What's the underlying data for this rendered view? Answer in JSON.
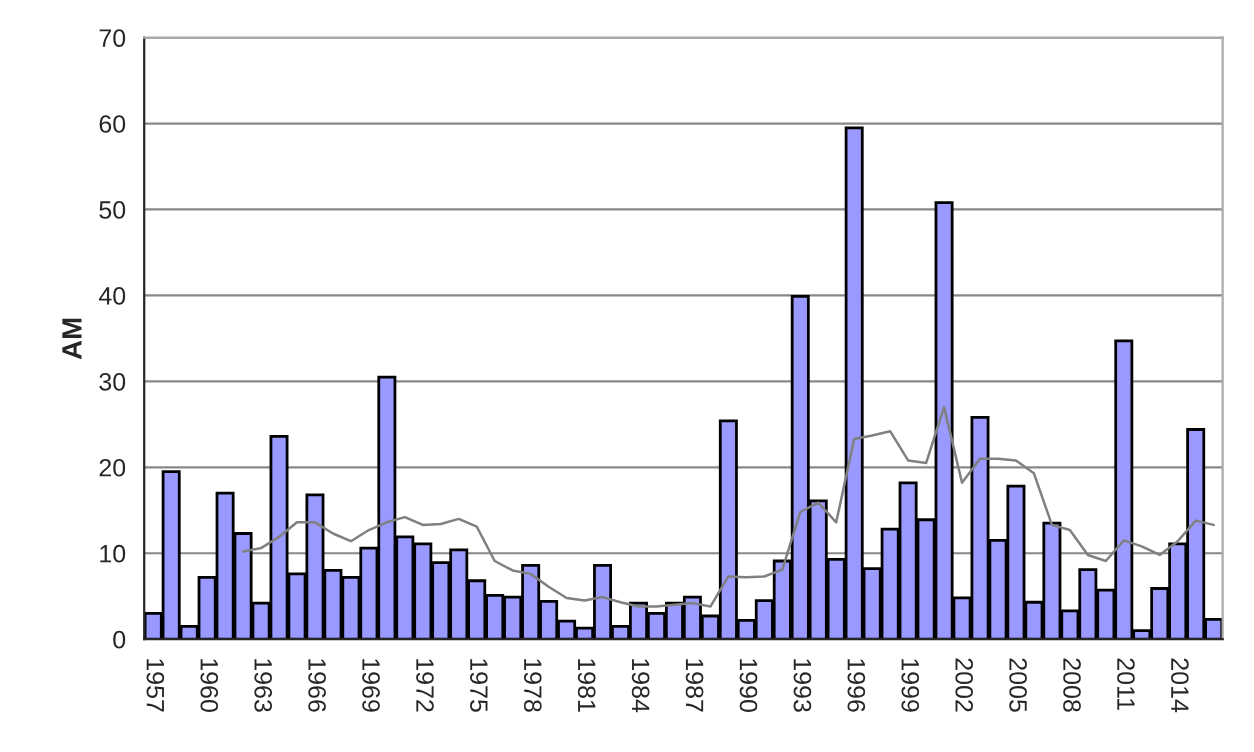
{
  "chart_data": {
    "type": "bar",
    "ylabel": "AM",
    "categories": [
      "1957",
      null,
      null,
      "1960",
      null,
      null,
      "1963",
      null,
      null,
      "1966",
      null,
      null,
      "1969",
      null,
      null,
      "1972",
      null,
      null,
      "1975",
      null,
      null,
      "1978",
      null,
      null,
      "1981",
      null,
      null,
      "1984",
      null,
      null,
      "1987",
      null,
      null,
      "1990",
      null,
      null,
      "1993",
      null,
      null,
      "1996",
      null,
      null,
      "1999",
      null,
      null,
      "2002",
      null,
      null,
      "2005",
      null,
      null,
      "2008",
      null,
      null,
      "2011",
      null,
      null,
      "2014",
      null,
      null
    ],
    "series": [
      {
        "color": "#9999ff",
        "values": [
          3.0,
          19.5,
          1.5,
          7.2,
          17,
          12.3,
          4.2,
          23.6,
          7.6,
          16.8,
          8.0,
          7.2,
          10.6,
          30.5,
          11.9,
          11.1,
          8.9,
          10.4,
          6.8,
          5.1,
          4.9,
          8.6,
          4.4,
          2.1,
          1.3,
          8.6,
          1.5,
          4.2,
          3.0,
          4.2,
          4.9,
          2.7,
          25.4,
          2.2,
          4.5,
          9.1,
          39.9,
          16.1,
          9.3,
          59.5,
          8.2,
          12.8,
          18.2,
          13.9,
          50.8,
          4.8,
          25.8,
          11.5,
          17.8,
          4.3,
          13.5,
          3.3,
          8.1,
          5.7,
          34.7,
          1.0,
          5.9,
          11.1,
          24.4,
          2.3
        ]
      },
      {
        "type": "line",
        "color": "#808080",
        "values": [
          null,
          null,
          null,
          null,
          null,
          10.2,
          10.6,
          11.9,
          13.6,
          13.6,
          12.3,
          11.4,
          12.7,
          13.6,
          14.2,
          13.3,
          13.4,
          14.0,
          13.1,
          9.1,
          8.0,
          7.6,
          6.1,
          4.8,
          4.5,
          4.9,
          4.3,
          3.8,
          3.8,
          4.0,
          4.2,
          3.8,
          7.3,
          7.2,
          7.3,
          8.1,
          14.8,
          15.9,
          13.6,
          23.3,
          23.7,
          24.2,
          20.8,
          20.5,
          27.0,
          18.2,
          21.0,
          21.0,
          20.8,
          19.3,
          13.3,
          12.7,
          9.8,
          9.1,
          11.5,
          10.8,
          9.8,
          11.4,
          13.8,
          13.3
        ]
      }
    ],
    "ylim": [
      0,
      70
    ],
    "yticks": [
      0,
      10,
      20,
      30,
      40,
      50,
      60,
      70
    ],
    "grid": "y",
    "legend": false,
    "marker": "none",
    "line_style": "solid"
  }
}
